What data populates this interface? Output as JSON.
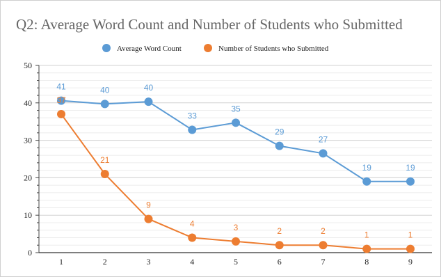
{
  "chart_data": {
    "type": "line",
    "title": "Q2: Average Word Count and Number of Students who Submitted",
    "x": [
      1,
      2,
      3,
      4,
      5,
      6,
      7,
      8,
      9
    ],
    "x_tick_labels": [
      "1",
      "2",
      "3",
      "4",
      "5",
      "6",
      "7",
      "8",
      "9"
    ],
    "ylim": [
      0,
      50
    ],
    "y_ticks": [
      0,
      10,
      20,
      30,
      40,
      50
    ],
    "grid": true,
    "legend_position": "top",
    "series": [
      {
        "name": "Average Word Count",
        "color": "#5b9bd5",
        "values": [
          40.6,
          39.7,
          40.3,
          32.8,
          34.7,
          28.5,
          26.5,
          19.0,
          19.0
        ],
        "data_labels": [
          "41",
          "40",
          "40",
          "33",
          "35",
          "29",
          "27",
          "19",
          "19"
        ]
      },
      {
        "name": "Number of Students who Submitted",
        "color": "#ed7d31",
        "values": [
          37,
          21,
          9,
          4,
          3,
          2,
          2,
          1,
          1
        ],
        "data_labels": [
          "37",
          "21",
          "9",
          "4",
          "3",
          "2",
          "2",
          "1",
          "1"
        ]
      }
    ]
  }
}
